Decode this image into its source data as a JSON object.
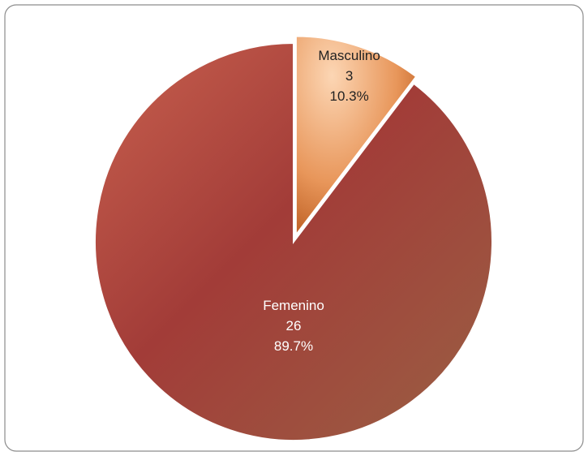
{
  "chart_data": {
    "type": "pie",
    "categories": [
      "Masculino",
      "Femenino"
    ],
    "values": [
      3,
      26
    ],
    "percent_labels": [
      "10.3%",
      "89.7%"
    ],
    "colors": [
      "#e8904a",
      "#a8463c"
    ],
    "exploded": [
      true,
      false
    ]
  }
}
